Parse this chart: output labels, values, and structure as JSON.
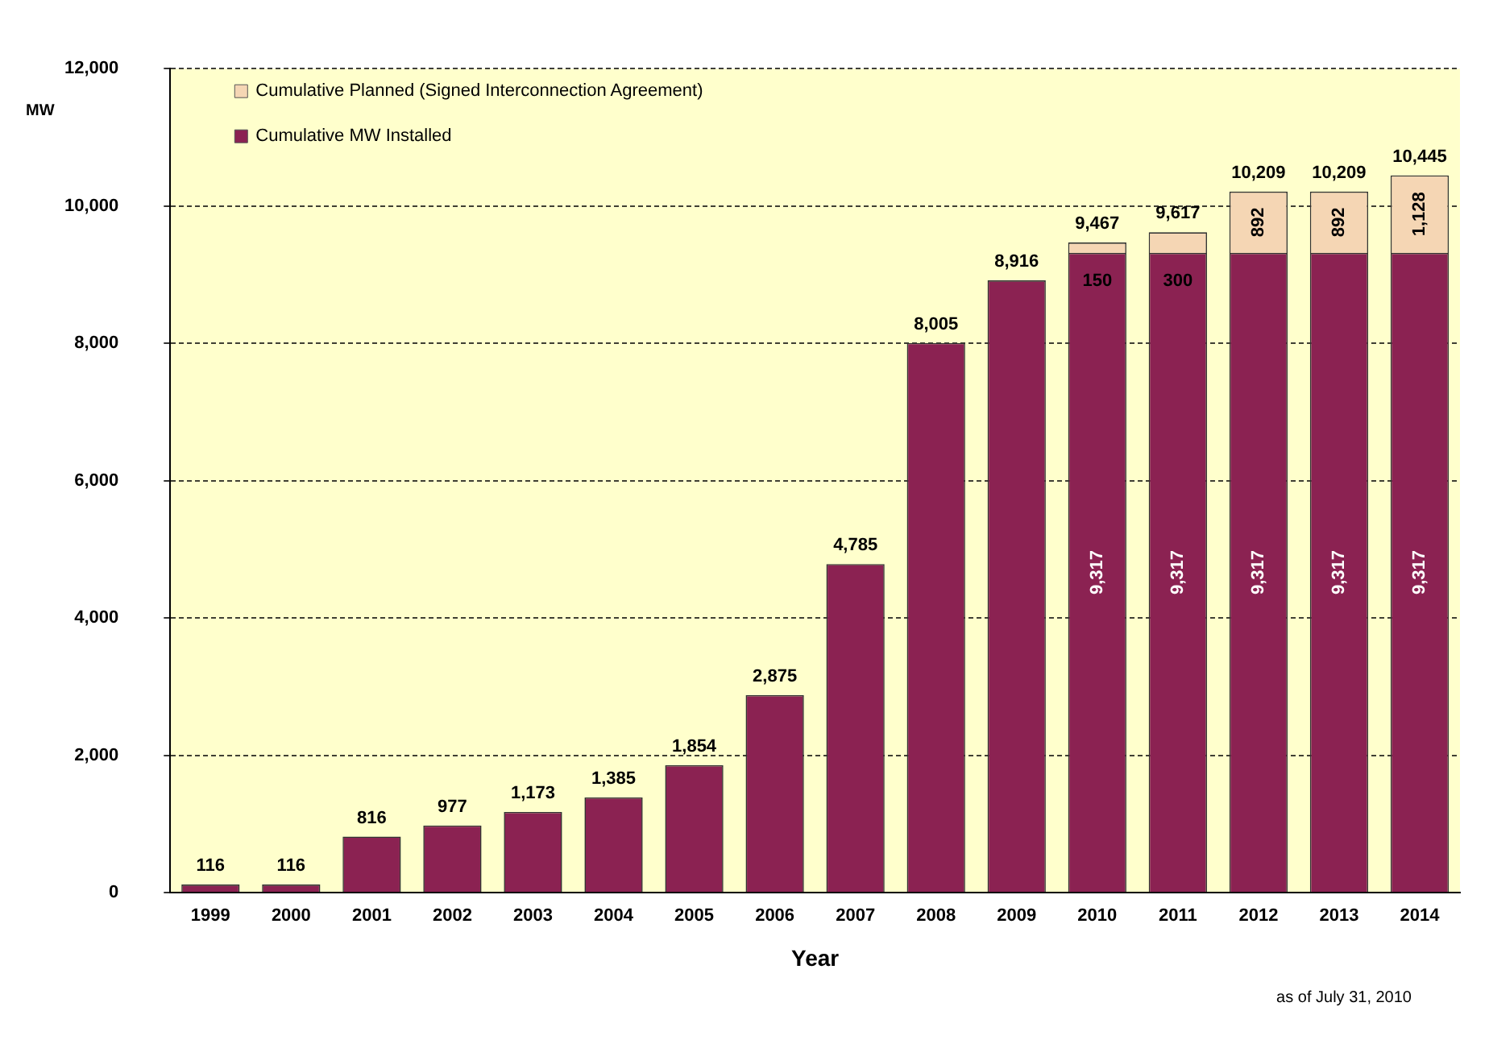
{
  "chart_data": {
    "type": "bar",
    "stacked": true,
    "xlabel": "Year",
    "ylabel": "MW",
    "categories": [
      "1999",
      "2000",
      "2001",
      "2002",
      "2003",
      "2004",
      "2005",
      "2006",
      "2007",
      "2008",
      "2009",
      "2010",
      "2011",
      "2012",
      "2013",
      "2014"
    ],
    "series": [
      {
        "name": "Cumulative MW Installed",
        "color": "#8b2252",
        "values": [
          116,
          116,
          816,
          977,
          1173,
          1385,
          1854,
          2875,
          4785,
          8005,
          8916,
          9317,
          9317,
          9317,
          9317,
          9317
        ],
        "value_labels": [
          "116",
          "116",
          "816",
          "977",
          "1,173",
          "1,385",
          "1,854",
          "2,875",
          "4,785",
          "8,005",
          "8,916",
          "9,317",
          "9,317",
          "9,317",
          "9,317",
          "9,317"
        ]
      },
      {
        "name": "Cumulative Planned (Signed Interconnection Agreement)",
        "color": "#f5d6b4",
        "values": [
          null,
          null,
          null,
          null,
          null,
          null,
          null,
          null,
          null,
          null,
          null,
          150,
          300,
          892,
          892,
          1128
        ],
        "value_labels": [
          null,
          null,
          null,
          null,
          null,
          null,
          null,
          null,
          null,
          null,
          null,
          "150",
          "300",
          "892",
          "892",
          "1,128"
        ]
      }
    ],
    "totals": [
      null,
      null,
      null,
      null,
      null,
      null,
      null,
      null,
      null,
      null,
      null,
      "9,467",
      "9,617",
      "10,209",
      "10,209",
      "10,445"
    ],
    "ylim": [
      0,
      12000
    ],
    "yticks": [
      0,
      {
        "value": 2000,
        "label": "2,000"
      },
      {
        "value": 4000,
        "label": "4,000"
      },
      {
        "value": 6000,
        "label": "6,000"
      },
      {
        "value": 8000,
        "label": "8,000"
      },
      {
        "value": 10000,
        "label": "10,000"
      },
      {
        "value": 12000,
        "label": "12,000"
      }
    ],
    "grid": "y",
    "legend": "top left",
    "annotations": [
      "as of July 31, 2010"
    ]
  }
}
